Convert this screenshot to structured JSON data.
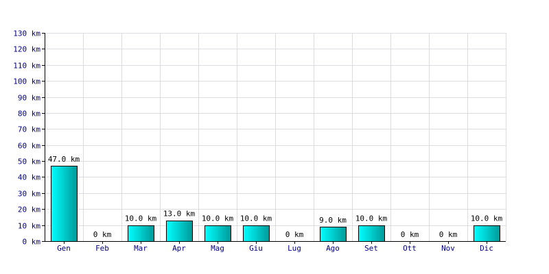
{
  "chart_data": {
    "type": "bar",
    "title": "",
    "xlabel": "",
    "ylabel": "",
    "unit_suffix": " km",
    "categories": [
      "Gen",
      "Feb",
      "Mar",
      "Apr",
      "Mag",
      "Giu",
      "Lug",
      "Ago",
      "Set",
      "Ott",
      "Nov",
      "Dic"
    ],
    "values": [
      47,
      0,
      10,
      13,
      10,
      10,
      0,
      9,
      10,
      0,
      0,
      10
    ],
    "data_labels": [
      "47.0 km",
      "0 km",
      "10.0 km",
      "13.0 km",
      "10.0 km",
      "10.0 km",
      "0 km",
      "9.0 km",
      "10.0 km",
      "0 km",
      "0 km",
      "10.0 km"
    ],
    "y_ticks": [
      "0 km",
      "10 km",
      "20 km",
      "30 km",
      "40 km",
      "50 km",
      "60 km",
      "70 km",
      "80 km",
      "90 km",
      "100 km",
      "110 km",
      "120 km",
      "130 km"
    ],
    "ylim": [
      0,
      130
    ],
    "y_step": 10,
    "grid": true,
    "colors": {
      "bar_light": "#00ffff",
      "bar_dark": "#009999",
      "bar_outline": "#000000",
      "tick_label": "#000080",
      "grid": "#dcdce6"
    }
  }
}
